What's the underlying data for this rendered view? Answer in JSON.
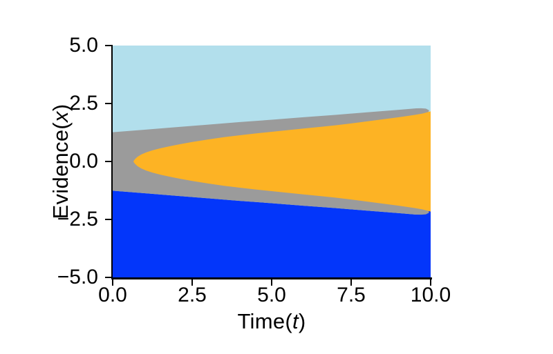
{
  "figure": {
    "background": "#ffffff",
    "text_color": "#000000",
    "title": ""
  },
  "chart_data": {
    "type": "area",
    "title": "",
    "xlabel": "Time(t)",
    "ylabel": "Evidence(x)",
    "xlabel_parts": {
      "prefix": "Time(",
      "variable": "t",
      "suffix": ")"
    },
    "ylabel_parts": {
      "prefix": "Evidence(",
      "variable": "x",
      "suffix": ")"
    },
    "xlim": [
      0,
      10
    ],
    "ylim": [
      -5,
      5
    ],
    "x_ticks": [
      0,
      2.5,
      5,
      7.5,
      10
    ],
    "x_tick_labels": [
      "0.0",
      "2.5",
      "5.0",
      "7.5",
      "10.0"
    ],
    "y_ticks": [
      5,
      2.5,
      0,
      -2.5,
      -5
    ],
    "y_tick_labels": [
      "5.0",
      "2.5",
      "0.0",
      "−2.5",
      "−5.0"
    ],
    "grid": false,
    "legend": false,
    "colors": {
      "upper": "#b2dfec",
      "band": "#9b9b9b",
      "wedge": "#fdb324",
      "lower": "#0336fa"
    },
    "regions": [
      {
        "id": "upper",
        "color": "#b2dfec",
        "label": "light blue region above upper gray boundary"
      },
      {
        "id": "band",
        "color": "#9b9b9b",
        "label": "gray band between outer boundary ±f(t) and orange wedge, ending in rounded caps near t=10"
      },
      {
        "id": "wedge",
        "color": "#fdb324",
        "label": "orange wedge opening rightward from rounded tip at (0.65, 0)"
      },
      {
        "id": "lower",
        "color": "#0336fa",
        "label": "blue region below lower gray boundary"
      }
    ],
    "outer_boundary": {
      "t": [
        0,
        1,
        2,
        3,
        4,
        5,
        6,
        7,
        8,
        9,
        9.55
      ],
      "x_abs": [
        1.26,
        1.37,
        1.48,
        1.59,
        1.7,
        1.8,
        1.91,
        2.01,
        2.12,
        2.23,
        2.29
      ]
    },
    "inner_boundary": {
      "t": [
        0.65,
        0.7,
        0.78,
        0.9,
        1.05,
        1.25,
        1.5,
        1.8,
        2.1,
        2.5,
        3.0,
        3.5,
        4.0,
        4.5,
        5.0,
        5.5,
        6.0,
        6.5,
        7.0,
        7.5,
        8.0,
        8.5,
        9.0,
        9.5,
        9.75,
        10
      ],
      "x_abs": [
        0,
        0.1,
        0.2,
        0.3,
        0.39,
        0.48,
        0.57,
        0.66,
        0.74,
        0.84,
        0.95,
        1.05,
        1.13,
        1.21,
        1.28,
        1.35,
        1.42,
        1.49,
        1.56,
        1.64,
        1.73,
        1.82,
        1.91,
        2.01,
        2.07,
        2.16
      ]
    },
    "band_cap": [
      [
        9.7,
        2.295
      ],
      [
        9.85,
        2.28
      ],
      [
        9.95,
        2.21
      ],
      [
        9.93,
        2.12
      ],
      [
        9.8,
        2.06
      ]
    ],
    "blue_top_tail": [
      [
        9.75,
        -2.245
      ],
      [
        10,
        -2.1
      ]
    ]
  }
}
